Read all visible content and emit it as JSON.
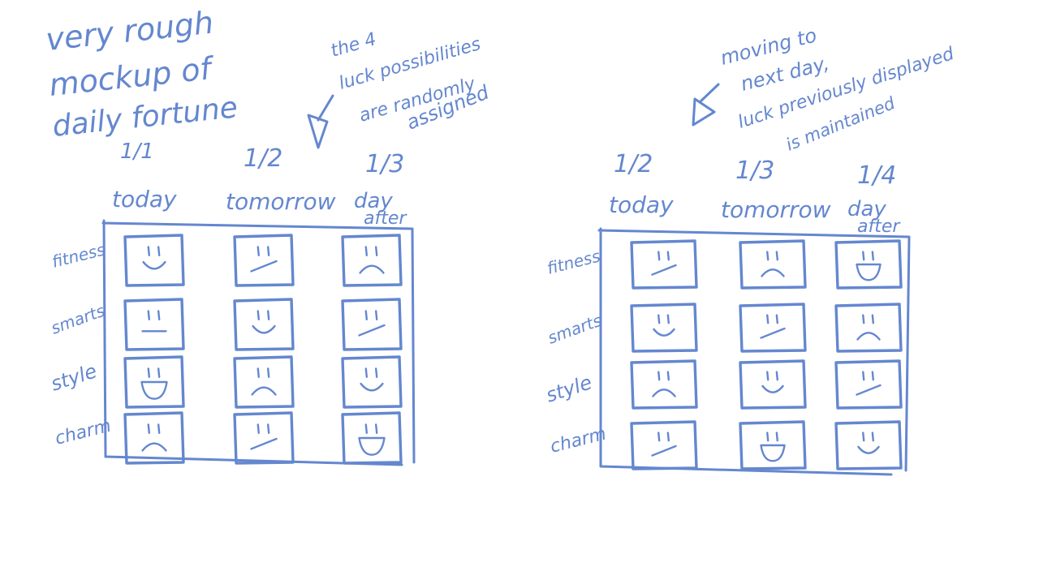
{
  "colors": {
    "ink": "#6487CF",
    "background": "#ffffff"
  },
  "notes": {
    "title": [
      "very rough",
      "mockup of",
      "daily fortune"
    ],
    "left_annotation": [
      "the 4",
      "luck possibilities",
      "are randomly",
      "assigned"
    ],
    "right_annotation": [
      "moving to",
      "next day,",
      "luck previously displayed",
      "is maintained"
    ]
  },
  "categories": [
    "fitness",
    "smarts",
    "style",
    "charm"
  ],
  "panels": [
    {
      "columns": [
        {
          "date": "1/1",
          "label": "today"
        },
        {
          "date": "1/2",
          "label": "tomorrow"
        },
        {
          "date": "1/3",
          "label": "day",
          "label2": "after"
        }
      ],
      "faces": [
        [
          "happy",
          "meh",
          "sad"
        ],
        [
          "neutral",
          "happy",
          "meh"
        ],
        [
          "great",
          "sad",
          "happy"
        ],
        [
          "sad",
          "meh",
          "great"
        ]
      ]
    },
    {
      "columns": [
        {
          "date": "1/2",
          "label": "today"
        },
        {
          "date": "1/3",
          "label": "tomorrow"
        },
        {
          "date": "1/4",
          "label": "day",
          "label2": "after"
        }
      ],
      "faces": [
        [
          "meh",
          "sad",
          "great"
        ],
        [
          "happy",
          "meh",
          "sad"
        ],
        [
          "sad",
          "happy",
          "meh"
        ],
        [
          "meh",
          "great",
          "happy"
        ]
      ]
    }
  ]
}
